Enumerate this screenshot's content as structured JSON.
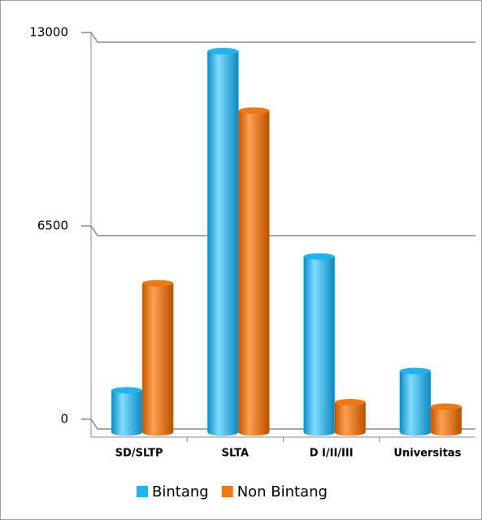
{
  "chart_data": {
    "type": "bar",
    "categories": [
      "SD/SLTP",
      "SLTA",
      "D I/II/III",
      "Universitas"
    ],
    "series": [
      {
        "name": "Bintang",
        "color": "#1eb4f0",
        "values": [
          1300,
          12700,
          5800,
          1950
        ]
      },
      {
        "name": "Non Bintang",
        "color": "#f07814",
        "values": [
          4900,
          10700,
          900,
          750
        ]
      }
    ],
    "ylim": [
      0,
      13000
    ],
    "yticks": [
      0,
      6500,
      13000
    ],
    "grid": true,
    "legend": "bottom"
  }
}
